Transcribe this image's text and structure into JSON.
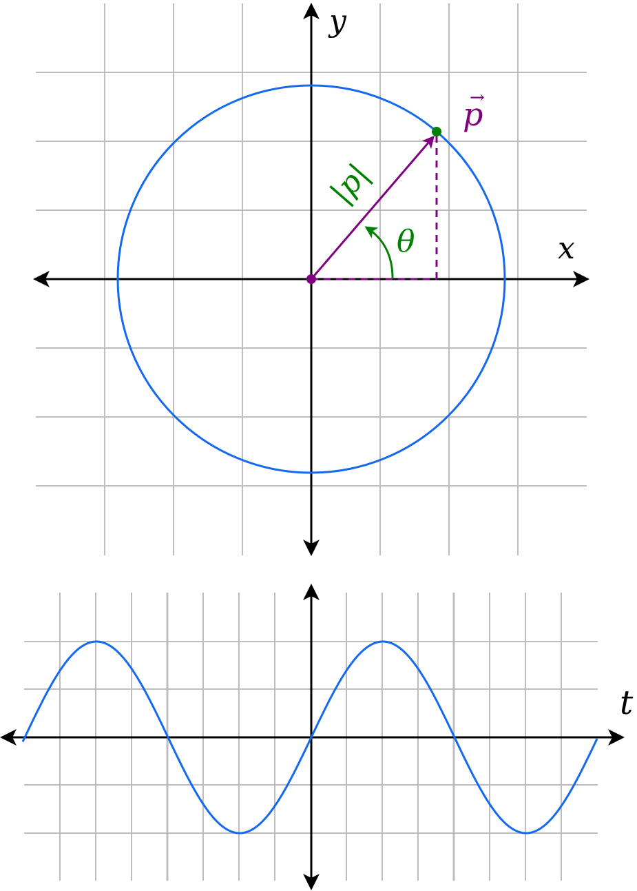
{
  "top_diagram": {
    "x_label": "x",
    "y_label": "y",
    "vector_label": "p",
    "vector_arrow_glyph": "→",
    "magnitude_label": "|p|",
    "angle_label": "θ",
    "circle_color": "#1469f0",
    "vector_color": "#800080",
    "angle_color": "#008000",
    "grid_color": "#bdbdbd"
  },
  "bottom_diagram": {
    "t_label": "t",
    "wave_color": "#1469f0",
    "grid_color": "#bdbdbd"
  }
}
